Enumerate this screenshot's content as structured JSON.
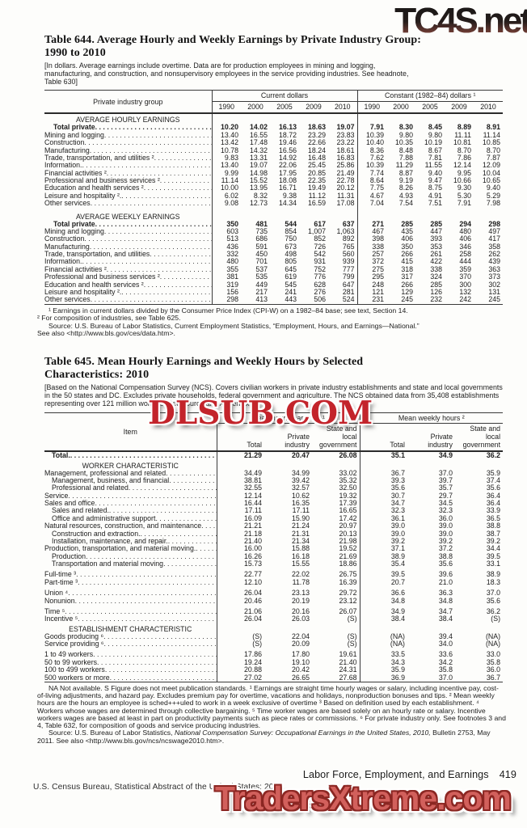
{
  "colors": {
    "watermark_red": "#c3242b",
    "watermark_salmon": "#d2605c",
    "watermark_dark_gradient_top": "#161616",
    "watermark_dark_gradient_bottom": "#a46253"
  },
  "watermarks": {
    "top": "TC4S.net",
    "middle": "DLSUB.COM",
    "bottom": "TradersXtreme.com"
  },
  "footer": {
    "section_title": "Labor Force, Employment, and Earnings",
    "page_number": "419",
    "credit": "U.S. Census Bureau, Statistical Abstract of the United States: 2012"
  },
  "table644": {
    "title_line1": "Table 644. Average Hourly and Weekly Earnings by Private Industry Group:",
    "title_line2": "1990 to 2010",
    "headnote": "[In dollars. Average earnings include overtime. Data are for production employees in mining and logging, manufacturing, and construction, and nonsupervisory employees in the service providing industries. See headnote, Table 630]",
    "stub_header": "Private industry group",
    "col_group1": "Current dollars",
    "col_group2": "Constant (1982–84) dollars ¹",
    "years": [
      "1990",
      "2000",
      "2005",
      "2009",
      "2010"
    ],
    "sections": [
      {
        "header": "AVERAGE HOURLY EARNINGS",
        "rows": [
          {
            "label": "Total private",
            "bold": true,
            "indent": 1,
            "values": [
              "10.20",
              "14.02",
              "16.13",
              "18.63",
              "19.07",
              "7.91",
              "8.30",
              "8.45",
              "8.89",
              "8.91"
            ]
          },
          {
            "label": "Mining and logging",
            "values": [
              "13.40",
              "16.55",
              "18.72",
              "23.29",
              "23.83",
              "10.39",
              "9.80",
              "9.80",
              "11.11",
              "11.14"
            ]
          },
          {
            "label": "Construction",
            "values": [
              "13.42",
              "17.48",
              "19.46",
              "22.66",
              "23.22",
              "10.40",
              "10.35",
              "10.19",
              "10.81",
              "10.85"
            ]
          },
          {
            "label": "Manufacturing",
            "values": [
              "10.78",
              "14.32",
              "16.56",
              "18.24",
              "18.61",
              "8.36",
              "8.48",
              "8.67",
              "8.70",
              "8.70"
            ]
          },
          {
            "label": "Trade, transportation, and utilities ²",
            "values": [
              "9.83",
              "13.31",
              "14.92",
              "16.48",
              "16.83",
              "7.62",
              "7.88",
              "7.81",
              "7.86",
              "7.87"
            ]
          },
          {
            "label": "Information.",
            "values": [
              "13.40",
              "19.07",
              "22.06",
              "25.45",
              "25.86",
              "10.39",
              "11.29",
              "11.55",
              "12.14",
              "12.09"
            ]
          },
          {
            "label": "Financial activities ²",
            "values": [
              "9.99",
              "14.98",
              "17.95",
              "20.85",
              "21.49",
              "7.74",
              "8.87",
              "9.40",
              "9.95",
              "10.04"
            ]
          },
          {
            "label": "Professional and business services ²",
            "values": [
              "11.14",
              "15.52",
              "18.08",
              "22.35",
              "22.78",
              "8.64",
              "9.19",
              "9.47",
              "10.66",
              "10.65"
            ]
          },
          {
            "label": "Education and health services ²",
            "values": [
              "10.00",
              "13.95",
              "16.71",
              "19.49",
              "20.12",
              "7.75",
              "8.26",
              "8.75",
              "9.30",
              "9.40"
            ]
          },
          {
            "label": "Leisure and hospitality ².",
            "values": [
              "6.02",
              "8.32",
              "9.38",
              "11.12",
              "11.31",
              "4.67",
              "4.93",
              "4.91",
              "5.30",
              "5.29"
            ]
          },
          {
            "label": "Other services",
            "values": [
              "9.08",
              "12.73",
              "14.34",
              "16.59",
              "17.08",
              "7.04",
              "7.54",
              "7.51",
              "7.91",
              "7.98"
            ]
          }
        ]
      },
      {
        "header": "AVERAGE WEEKLY EARNINGS",
        "rows": [
          {
            "label": "Total private",
            "bold": true,
            "indent": 1,
            "values": [
              "350",
              "481",
              "544",
              "617",
              "637",
              "271",
              "285",
              "285",
              "294",
              "298"
            ]
          },
          {
            "label": "Mining and logging",
            "values": [
              "603",
              "735",
              "854",
              "1,007",
              "1,063",
              "467",
              "435",
              "447",
              "480",
              "497"
            ]
          },
          {
            "label": "Construction",
            "values": [
              "513",
              "686",
              "750",
              "852",
              "892",
              "398",
              "406",
              "393",
              "406",
              "417"
            ]
          },
          {
            "label": "Manufacturing",
            "values": [
              "436",
              "591",
              "673",
              "726",
              "765",
              "338",
              "350",
              "353",
              "346",
              "358"
            ]
          },
          {
            "label": "Trade, transportation, and utilities",
            "values": [
              "332",
              "450",
              "498",
              "542",
              "560",
              "257",
              "266",
              "261",
              "258",
              "262"
            ]
          },
          {
            "label": "Information.",
            "values": [
              "480",
              "701",
              "805",
              "931",
              "939",
              "372",
              "415",
              "422",
              "444",
              "439"
            ]
          },
          {
            "label": "Financial activities ²",
            "values": [
              "355",
              "537",
              "645",
              "752",
              "777",
              "275",
              "318",
              "338",
              "359",
              "363"
            ]
          },
          {
            "label": "Professional and business services ²",
            "values": [
              "381",
              "535",
              "619",
              "776",
              "799",
              "295",
              "317",
              "324",
              "370",
              "373"
            ]
          },
          {
            "label": "Education and health services ²",
            "values": [
              "319",
              "449",
              "545",
              "628",
              "647",
              "248",
              "266",
              "285",
              "300",
              "302"
            ]
          },
          {
            "label": "Leisure and hospitality ².",
            "values": [
              "156",
              "217",
              "241",
              "276",
              "281",
              "121",
              "129",
              "126",
              "132",
              "131"
            ]
          },
          {
            "label": "Other services",
            "values": [
              "298",
              "413",
              "443",
              "506",
              "524",
              "231",
              "245",
              "232",
              "242",
              "245"
            ]
          }
        ]
      }
    ],
    "footnote1": "¹ Earnings in current dollars divided by the Consumer Price Index  (CPI-W) on a 1982–84 base; see text, Section 14.",
    "footnote2": "² For composition of industries, see Table 625.",
    "source_line1": "Source: U.S. Bureau of Labor Statistics, Current Employment Statistics, “Employment, Hours, and Earnings—National.”",
    "source_line2": "See also <http://www.bls.gov/ces/data.htm>."
  },
  "table645": {
    "title_line1": "Table 645. Mean Hourly Earnings and Weekly Hours by Selected",
    "title_line2": "Characteristics: 2010",
    "headnote": "[Based on the National Compensation Survey (NCS). Covers civilian workers in private industry establishments and state and local governments in the 50 states and DC. Excludes private households, federal government and agriculture. The NCS obtained data from 35,408 establishments representing over 121 million workers. See source and Appendix III]",
    "stub_header": "Item",
    "col_group1": "Mean hourly earnings ¹",
    "col_group2": "Mean weekly hours ²",
    "sub_headers": [
      "Total",
      "Private industry",
      "State and local government"
    ],
    "sections": [
      {
        "header": null,
        "groups": [
          [
            {
              "label": "Total.",
              "bold": true,
              "indent": 1,
              "values": [
                "21.29",
                "20.47",
                "26.08",
                "35.1",
                "34.9",
                "36.2"
              ]
            }
          ]
        ]
      },
      {
        "header": "WORKER CHARACTERISTIC",
        "groups": [
          [
            {
              "label": "Management, professional and related",
              "values": [
                "34.49",
                "34.99",
                "33.02",
                "36.7",
                "37.0",
                "35.9"
              ]
            },
            {
              "label": "Management, business, and financial",
              "indent": 1,
              "values": [
                "38.81",
                "39.42",
                "35.32",
                "39.3",
                "39.7",
                "37.4"
              ]
            },
            {
              "label": "Professional and related",
              "indent": 1,
              "values": [
                "32.55",
                "32.57",
                "32.50",
                "35.6",
                "35.7",
                "35.6"
              ]
            },
            {
              "label": "Service",
              "values": [
                "12.14",
                "10.62",
                "19.32",
                "30.7",
                "29.7",
                "36.4"
              ]
            },
            {
              "label": "Sales and office",
              "values": [
                "16.44",
                "16.35",
                "17.39",
                "34.7",
                "34.5",
                "36.4"
              ]
            },
            {
              "label": "Sales and related.",
              "indent": 1,
              "values": [
                "17.11",
                "17.11",
                "16.65",
                "32.3",
                "32.3",
                "33.9"
              ]
            },
            {
              "label": "Office and administrative support",
              "indent": 1,
              "values": [
                "16.09",
                "15.90",
                "17.42",
                "36.1",
                "36.0",
                "36.5"
              ]
            },
            {
              "label": "Natural resources, construction, and maintenance",
              "values": [
                "21.21",
                "21.24",
                "20.97",
                "39.0",
                "39.0",
                "38.8"
              ]
            },
            {
              "label": "Construction and extraction.",
              "indent": 1,
              "values": [
                "21.18",
                "21.31",
                "20.13",
                "39.0",
                "39.0",
                "38.7"
              ]
            },
            {
              "label": "Installation, maintenance, and repair.",
              "indent": 1,
              "values": [
                "21.40",
                "21.34",
                "21.98",
                "39.2",
                "39.2",
                "39.2"
              ]
            },
            {
              "label": "Production, transportation, and material moving.",
              "values": [
                "16.00",
                "15.88",
                "19.52",
                "37.1",
                "37.2",
                "34.4"
              ]
            },
            {
              "label": "Production",
              "indent": 1,
              "values": [
                "16.26",
                "16.18",
                "21.69",
                "38.9",
                "38.8",
                "39.5"
              ]
            },
            {
              "label": "Transportation and material moving",
              "indent": 1,
              "values": [
                "15.73",
                "15.55",
                "18.86",
                "35.4",
                "35.6",
                "33.1"
              ]
            }
          ],
          [
            {
              "label": "Full-time ³",
              "values": [
                "22.77",
                "22.02",
                "26.75",
                "39.5",
                "39.6",
                "38.9"
              ]
            },
            {
              "label": "Part-time ³",
              "values": [
                "12.10",
                "11.78",
                "16.39",
                "20.7",
                "21.0",
                "18.3"
              ]
            }
          ],
          [
            {
              "label": "Union ⁴",
              "values": [
                "26.04",
                "23.13",
                "29.72",
                "36.6",
                "36.3",
                "37.0"
              ]
            },
            {
              "label": "Nonunion",
              "values": [
                "20.46",
                "20.19",
                "23.12",
                "34.8",
                "34.8",
                "35.6"
              ]
            }
          ],
          [
            {
              "label": "Time ⁵",
              "values": [
                "21.06",
                "20.16",
                "26.07",
                "34.9",
                "34.7",
                "36.2"
              ]
            },
            {
              "label": "Incentive ⁵",
              "values": [
                "26.04",
                "26.03",
                "(S)",
                "38.4",
                "38.4",
                "(S)"
              ]
            }
          ]
        ]
      },
      {
        "header": "ESTABLISHMENT CHARACTERISTIC",
        "groups": [
          [
            {
              "label": "Goods producing ⁶",
              "values": [
                "(S)",
                "22.04",
                "(S)",
                "(NA)",
                "39.4",
                "(NA)"
              ]
            },
            {
              "label": "Service providing ⁶",
              "values": [
                "(S)",
                "20.09",
                "(S)",
                "(NA)",
                "34.0",
                "(NA)"
              ]
            }
          ],
          [
            {
              "label": "1 to 49 workers",
              "values": [
                "17.86",
                "17.80",
                "19.61",
                "33.5",
                "33.6",
                "33.0"
              ]
            },
            {
              "label": "50 to 99 workers",
              "values": [
                "19.24",
                "19.10",
                "21.40",
                "34.3",
                "34.2",
                "35.8"
              ]
            },
            {
              "label": "100 to 499 workers",
              "values": [
                "20.88",
                "20.42",
                "24.31",
                "35.9",
                "35.8",
                "36.0"
              ]
            },
            {
              "label": "500 workers or more",
              "values": [
                "27.02",
                "26.65",
                "27.68",
                "36.9",
                "37.0",
                "36.7"
              ]
            }
          ]
        ]
      }
    ],
    "footnote": "NA Not available. S Figure does not meet publication standards. ¹ Earnings are straight time hourly wages or salary, including incentive pay, cost-of-living adjustments, and hazard pay. Excludes premium pay for overtime, vacations and holidays, nonproduction bonuses and tips. ² Mean weekly hours are the hours an employee is sched+++uled to work in a week exclusive of overtime ³ Based on definition used by each establishment. ⁴ Workers whose wages are determined through collective bargaining. ⁵ Time worker wages are based solely on an hourly rate or salary. Incentive workers wages are based at least in part on productivity payments such as piece rates or commissions. ⁶ For private industry only. See footnotes 3 and 4, Table 632, for composition of goods and service producing industries.",
    "source_prefix": "Source: U.S. Bureau of Labor Statistics, ",
    "source_italic": "National Compensation Survey: Occupational  Earnings in the United States, 2010,",
    "source_suffix": " Bulletin 2753, May 2011. See also <http://www.bls.gov/ncs/ncswage2010.htm>."
  }
}
